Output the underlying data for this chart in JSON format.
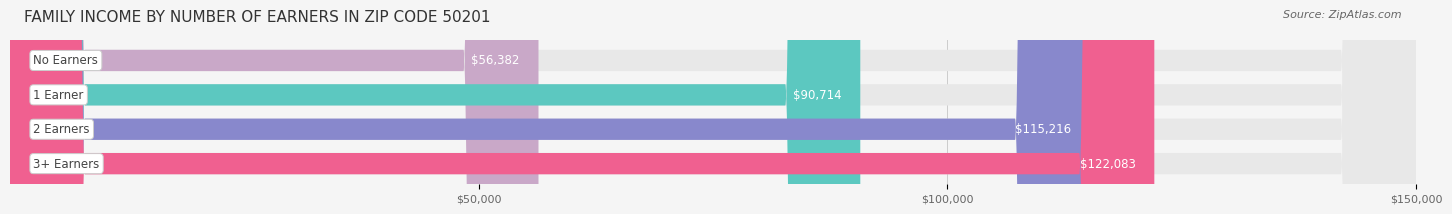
{
  "title": "FAMILY INCOME BY NUMBER OF EARNERS IN ZIP CODE 50201",
  "source": "Source: ZipAtlas.com",
  "categories": [
    "No Earners",
    "1 Earner",
    "2 Earners",
    "3+ Earners"
  ],
  "values": [
    56382,
    90714,
    115216,
    122083
  ],
  "bar_colors": [
    "#c9a8c8",
    "#5cc8c0",
    "#8888cc",
    "#f06090"
  ],
  "bar_bg_color": "#e8e8e8",
  "value_labels": [
    "$56,382",
    "$90,714",
    "$115,216",
    "$122,083"
  ],
  "xlim": [
    0,
    150000
  ],
  "xticks": [
    50000,
    100000,
    150000
  ],
  "xtick_labels": [
    "$50,000",
    "$100,000",
    "$150,000"
  ],
  "background_color": "#f5f5f5",
  "title_fontsize": 11,
  "source_fontsize": 8,
  "label_fontsize": 8.5,
  "tick_fontsize": 8,
  "bar_height": 0.62,
  "label_box_color": "#ffffff",
  "label_box_border": "#cccccc"
}
